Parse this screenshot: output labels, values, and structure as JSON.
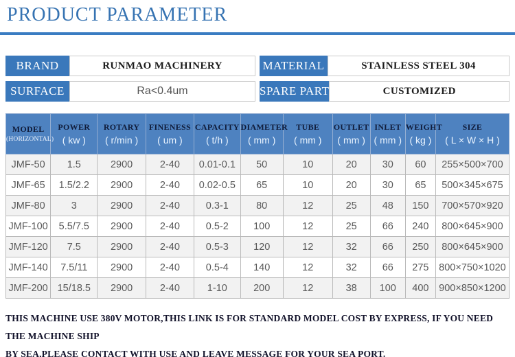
{
  "title": "PRODUCT PARAMETER",
  "colors": {
    "title_blue": "#3673b2",
    "rule_blue": "#3a7cc2",
    "label_blue": "#3a78bb",
    "header_blue": "#4e82c0",
    "row_stripe": "#f2f2f2"
  },
  "info": {
    "brand": {
      "label": "BRAND",
      "value": "RUNMAO MACHINERY"
    },
    "material": {
      "label": "MATERIAL",
      "value": "STAINLESS STEEL 304"
    },
    "surface": {
      "label": "SURFACE",
      "value": "Ra<0.4um"
    },
    "spare_part": {
      "label": "SPARE PART",
      "value": "CUSTOMIZED"
    }
  },
  "table": {
    "columns": [
      {
        "name": "MODEL",
        "sub": "(HORIZONTAL)"
      },
      {
        "name": "POWER",
        "unit": "( kw )"
      },
      {
        "name": "ROTARY",
        "unit": "( r/min )"
      },
      {
        "name": "FINENESS",
        "unit": "( um )"
      },
      {
        "name": "CAPACITY",
        "unit": "( t/h )"
      },
      {
        "name": "DIAMETER",
        "unit": "( mm )"
      },
      {
        "name": "TUBE",
        "unit": "( mm )"
      },
      {
        "name": "OUTLET",
        "unit": "( mm )"
      },
      {
        "name": "INLET",
        "unit": "( mm )"
      },
      {
        "name": "WEIGHT",
        "unit": "( kg )"
      },
      {
        "name": "SIZE",
        "unit": "( L × W × H )"
      }
    ],
    "rows": [
      [
        "JMF-50",
        "1.5",
        "2900",
        "2-40",
        "0.01-0.1",
        "50",
        "10",
        "20",
        "30",
        "60",
        "255×500×700"
      ],
      [
        "JMF-65",
        "1.5/2.2",
        "2900",
        "2-40",
        "0.02-0.5",
        "65",
        "10",
        "20",
        "30",
        "65",
        "500×345×675"
      ],
      [
        "JMF-80",
        "3",
        "2900",
        "2-40",
        "0.3-1",
        "80",
        "12",
        "25",
        "48",
        "150",
        "700×570×920"
      ],
      [
        "JMF-100",
        "5.5/7.5",
        "2900",
        "2-40",
        "0.5-2",
        "100",
        "12",
        "25",
        "66",
        "240",
        "800×645×900"
      ],
      [
        "JMF-120",
        "7.5",
        "2900",
        "2-40",
        "0.5-3",
        "120",
        "12",
        "32",
        "66",
        "250",
        "800×645×900"
      ],
      [
        "JMF-140",
        "7.5/11",
        "2900",
        "2-40",
        "0.5-4",
        "140",
        "12",
        "32",
        "66",
        "275",
        "800×750×1020"
      ],
      [
        "JMF-200",
        "15/18.5",
        "2900",
        "2-40",
        "1-10",
        "200",
        "12",
        "38",
        "100",
        "400",
        "900×850×1200"
      ]
    ]
  },
  "note": {
    "line1": "THIS MACHINE USE 380V MOTOR,THIS LINK IS FOR STANDARD MODEL COST BY EXPRESS, IF YOU NEED THE MACHINE SHIP",
    "line2": "BY SEA,PLEASE CONTACT WITH USE AND LEAVE MESSAGE FOR YOUR SEA PORT."
  }
}
